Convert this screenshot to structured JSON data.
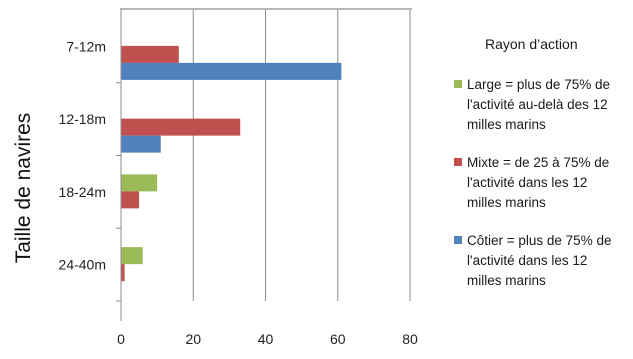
{
  "chart_data": {
    "type": "bar",
    "orientation": "horizontal",
    "ylabel": "Taille de navires",
    "categories": [
      "7-12m",
      "12-18m",
      "18-24m",
      "24-40m"
    ],
    "xlim": [
      0,
      80
    ],
    "xticks": [
      0,
      20,
      40,
      60,
      80
    ],
    "grid": true,
    "legend_title": "Rayon d’action",
    "legend_position": "right",
    "series": [
      {
        "name": "Large = plus de 75% de l'activité au-delà des 12 milles marins",
        "color": "#9bbb59",
        "values": [
          0,
          0,
          10,
          6
        ]
      },
      {
        "name": "Mixte = de 25 à 75% de l'activité dans les 12 milles marins",
        "color": "#c0504d",
        "values": [
          16,
          33,
          5,
          1
        ]
      },
      {
        "name": "Côtier = plus de 75% de l'activité dans les 12 milles marins",
        "color": "#4f81bd",
        "values": [
          61,
          11,
          0,
          0
        ]
      }
    ],
    "legend_lines": [
      [
        "Large = plus de 75% de",
        "l'activité au-delà des 12",
        "milles marins"
      ],
      [
        "Mixte = de 25 à 75% de",
        "l'activité dans les 12",
        "milles marins"
      ],
      [
        "Côtier = plus de 75% de",
        "l'activité dans les 12",
        "milles marins"
      ]
    ]
  }
}
